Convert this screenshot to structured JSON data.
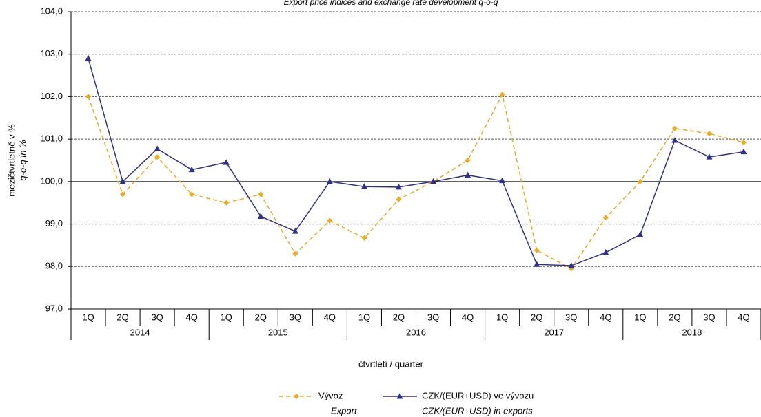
{
  "chart_data": {
    "type": "line",
    "title": "Export price indices and exchange rate development q-o-q",
    "y_label": "mezičtvrtletně v %",
    "y_label_en": "q-o-q in %",
    "x_label": "čtvrtletí / quarter",
    "categories": [
      "1Q",
      "2Q",
      "3Q",
      "4Q",
      "1Q",
      "2Q",
      "3Q",
      "4Q",
      "1Q",
      "2Q",
      "3Q",
      "4Q",
      "1Q",
      "2Q",
      "3Q",
      "4Q",
      "1Q",
      "2Q",
      "3Q",
      "4Q"
    ],
    "years": [
      "2014",
      "2015",
      "2016",
      "2017",
      "2018"
    ],
    "series": [
      {
        "name": "Vývoz",
        "name_en": "Export",
        "color": "#f0a81c",
        "marker": "diamond",
        "dashed": true,
        "values": [
          102.0,
          99.7,
          100.58,
          99.7,
          99.5,
          99.7,
          98.3,
          99.08,
          98.67,
          99.58,
          100.0,
          100.5,
          102.05,
          98.38,
          97.95,
          99.15,
          100.0,
          101.25,
          101.13,
          100.92
        ]
      },
      {
        "name": "CZK/(EUR+USD) ve vývozu",
        "name_en": "CZK/(EUR+USD) in exports",
        "color": "#2e2e8f",
        "marker": "triangle",
        "dashed": false,
        "values": [
          102.9,
          100.0,
          100.77,
          100.28,
          100.45,
          99.18,
          98.83,
          100.0,
          99.88,
          99.87,
          100.0,
          100.15,
          100.02,
          98.05,
          98.02,
          98.33,
          98.75,
          100.97,
          100.58,
          100.7
        ]
      }
    ],
    "ylim": [
      97,
      104
    ],
    "yticks": [
      {
        "value": 97,
        "label": "97,0"
      },
      {
        "value": 98,
        "label": "98,0"
      },
      {
        "value": 99,
        "label": "99,0"
      },
      {
        "value": 100,
        "label": "100,0"
      },
      {
        "value": 101,
        "label": "101,0"
      },
      {
        "value": 102,
        "label": "102,0"
      },
      {
        "value": 103,
        "label": "103,0"
      },
      {
        "value": 104,
        "label": "104,0"
      }
    ],
    "grid": true,
    "reference_line": 100
  }
}
